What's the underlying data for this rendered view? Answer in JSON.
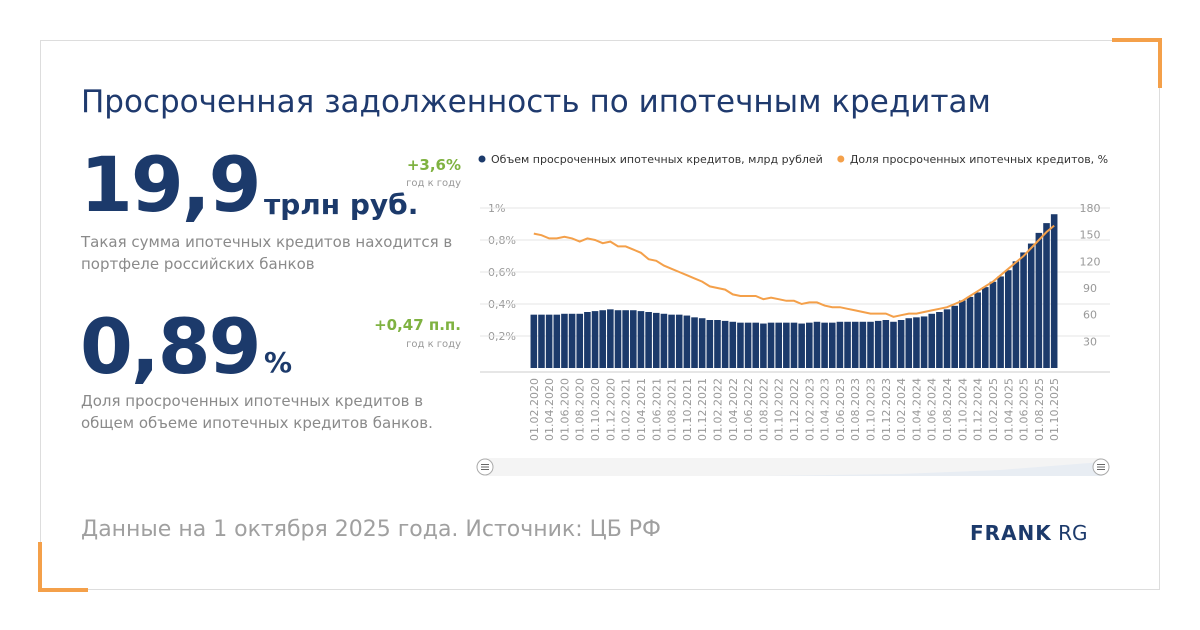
{
  "header": {
    "title": "Просроченная задолженность по ипотечным кредитам"
  },
  "kpis": [
    {
      "value": "19,9",
      "unit": "трлн руб.",
      "change": "+3,6%",
      "change_note": "год к году",
      "description": "Такая сумма ипотечных кредитов находится в портфеле российских банков"
    },
    {
      "value": "0,89",
      "unit": "%",
      "change": "+0,47 п.п.",
      "change_note": "год к году",
      "description": "Доля просроченных ипотечных кредитов в общем объеме ипотечных кредитов банков."
    }
  ],
  "footer": {
    "source": "Данные на 1 октября 2025 года. Источник: ЦБ РФ",
    "logo_bold": "FRANK",
    "logo_light": "RG"
  },
  "chart_data": {
    "type": "bar-line",
    "categories": [
      "01.02.2020",
      null,
      "01.04.2020",
      null,
      "01.06.2020",
      null,
      "01.08.2020",
      null,
      "01.10.2020",
      null,
      "01.12.2020",
      null,
      "01.02.2021",
      null,
      "01.04.2021",
      null,
      "01.06.2021",
      null,
      "01.08.2021",
      null,
      "01.10.2021",
      null,
      "01.12.2021",
      null,
      "01.02.2022",
      null,
      "01.04.2022",
      null,
      "01.06.2022",
      null,
      "01.08.2022",
      null,
      "01.10.2022",
      null,
      "01.12.2022",
      null,
      "01.02.2023",
      null,
      "01.04.2023",
      null,
      "01.06.2023",
      null,
      "01.08.2023",
      null,
      "01.10.2023",
      null,
      "01.12.2023",
      null,
      "01.02.2024",
      null,
      "01.04.2024",
      null,
      "01.06.2024",
      null,
      "01.08.2024",
      null,
      "01.10.2024",
      null,
      "01.12.2024",
      null,
      "01.02.2025",
      null,
      "01.04.2025",
      null,
      "01.06.2025",
      null,
      "01.08.2025",
      null,
      "01.10.2025"
    ],
    "series": [
      {
        "name": "Объем просроченных ипотечных кредитов, млрд рублей",
        "color": "#1c3a6b",
        "axis": "y2",
        "kind": "bar",
        "values": [
          60,
          60,
          60,
          60,
          61,
          61,
          61,
          63,
          64,
          65,
          66,
          65,
          65,
          65,
          64,
          63,
          62,
          61,
          60,
          60,
          59,
          57,
          56,
          54,
          54,
          53,
          52,
          51,
          51,
          51,
          50,
          51,
          51,
          51,
          51,
          50,
          51,
          52,
          51,
          51,
          52,
          52,
          52,
          52,
          52,
          53,
          54,
          52,
          54,
          56,
          57,
          58,
          61,
          63,
          66,
          70,
          76,
          80,
          85,
          91,
          97,
          103,
          110,
          120,
          130,
          140,
          152,
          163,
          173
        ]
      },
      {
        "name": "Доля просроченных ипотечных кредитов, %",
        "color": "#f4a04a",
        "axis": "y",
        "kind": "line",
        "values": [
          0.84,
          0.83,
          0.81,
          0.81,
          0.82,
          0.81,
          0.79,
          0.81,
          0.8,
          0.78,
          0.79,
          0.76,
          0.76,
          0.74,
          0.72,
          0.68,
          0.67,
          0.64,
          0.62,
          0.6,
          0.58,
          0.56,
          0.54,
          0.51,
          0.5,
          0.49,
          0.46,
          0.45,
          0.45,
          0.45,
          0.43,
          0.44,
          0.43,
          0.42,
          0.42,
          0.4,
          0.41,
          0.41,
          0.39,
          0.38,
          0.38,
          0.37,
          0.36,
          0.35,
          0.34,
          0.34,
          0.34,
          0.32,
          0.33,
          0.34,
          0.34,
          0.35,
          0.36,
          0.37,
          0.38,
          0.4,
          0.42,
          0.45,
          0.48,
          0.51,
          0.54,
          0.58,
          0.62,
          0.66,
          0.7,
          0.75,
          0.8,
          0.85,
          0.89
        ]
      }
    ],
    "ylim": [
      0,
      1
    ],
    "yticks": [
      {
        "value": 0.2,
        "label": "0,2%"
      },
      {
        "value": 0.4,
        "label": "0,4%"
      },
      {
        "value": 0.6,
        "label": "0,6%"
      },
      {
        "value": 0.8,
        "label": "0,8%"
      },
      {
        "value": 1,
        "label": "1%"
      }
    ],
    "y2lim": [
      0,
      180
    ],
    "y2ticks": [
      30,
      60,
      90,
      120,
      150,
      180
    ],
    "grid": true,
    "legend": "top"
  }
}
